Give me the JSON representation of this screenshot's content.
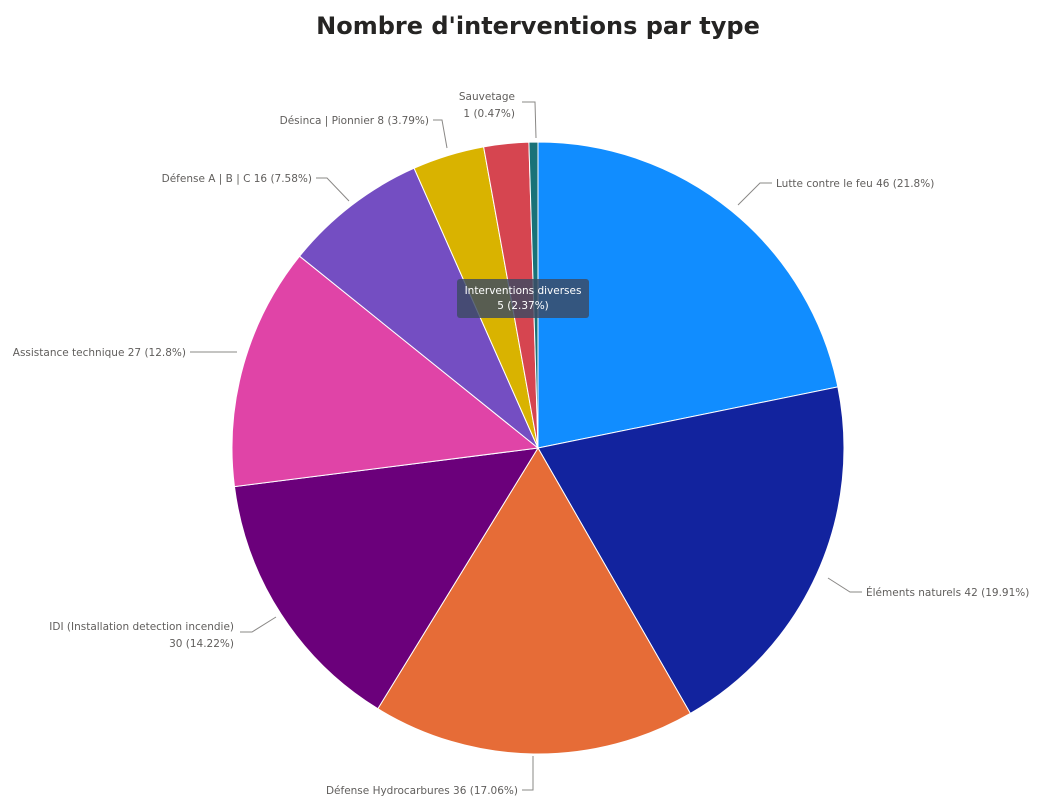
{
  "chart_data": {
    "type": "pie",
    "title": "Nombre d'interventions par type",
    "slices": [
      {
        "name": "Lutte contre le feu",
        "value": 46,
        "percent": "21.8%",
        "color": "#118DFF",
        "label_lines": [
          "Lutte contre le feu 46 (21.8%)"
        ]
      },
      {
        "name": "Éléments naturels",
        "value": 42,
        "percent": "19.91%",
        "color": "#12239E",
        "label_lines": [
          "Éléments naturels 42 (19.91%)"
        ]
      },
      {
        "name": "Défense Hydrocarbures",
        "value": 36,
        "percent": "17.06%",
        "color": "#E66C37",
        "label_lines": [
          "Défense Hydrocarbures 36 (17.06%)"
        ]
      },
      {
        "name": "IDI (Installation detection incendie)",
        "value": 30,
        "percent": "14.22%",
        "color": "#6B007B",
        "label_lines": [
          "IDI (Installation detection incendie)",
          "30 (14.22%)"
        ]
      },
      {
        "name": "Assistance technique",
        "value": 27,
        "percent": "12.8%",
        "color": "#E044A7",
        "label_lines": [
          "Assistance technique 27 (12.8%)"
        ]
      },
      {
        "name": "Défense A | B | C",
        "value": 16,
        "percent": "7.58%",
        "color": "#744EC2",
        "label_lines": [
          "Défense A | B | C 16 (7.58%)"
        ]
      },
      {
        "name": "Désinca | Pionnier",
        "value": 8,
        "percent": "3.79%",
        "color": "#D9B300",
        "label_lines": [
          "Désinca | Pionnier 8 (3.79%)"
        ]
      },
      {
        "name": "Interventions diverses",
        "value": 5,
        "percent": "2.37%",
        "color": "#D64550",
        "label_lines": [
          "Interventions diverses",
          "5 (2.37%)"
        ]
      },
      {
        "name": "Sauvetage",
        "value": 1,
        "percent": "0.47%",
        "color": "#197278",
        "label_lines": [
          "Sauvetage",
          "1 (0.47%)"
        ]
      }
    ],
    "tooltip": {
      "slice": "Interventions diverses",
      "lines": [
        "Interventions diverses",
        "5 (2.37%)"
      ]
    },
    "legend": "none"
  }
}
